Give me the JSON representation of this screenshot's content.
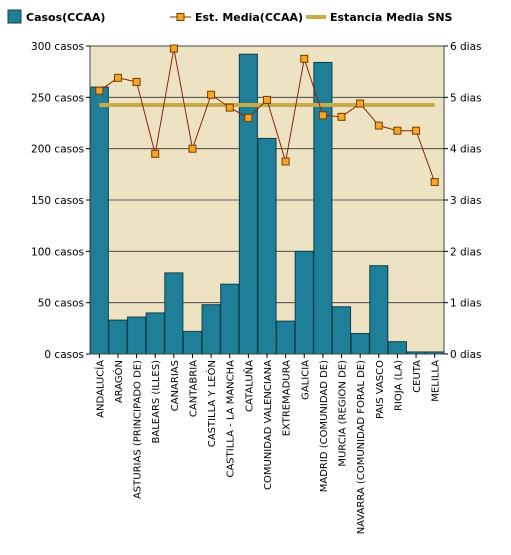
{
  "chart_data": {
    "type": "bar",
    "categories": [
      "ANDALUCÍA",
      "ARAGÓN",
      "ASTURIAS (PRINCIPADO DE)",
      "BALEARS (ILLES)",
      "CANARIAS",
      "CANTABRIA",
      "CASTILLA Y LEÓN",
      "CASTILLA - LA MANCHA",
      "CATALUÑA",
      "COMUNIDAD VALENCIANA",
      "EXTREMADURA",
      "GALICIA",
      "MADRID (COMUNIDAD DE)",
      "MURCIA (REGION DE)",
      "NAVARRA (COMUNIDAD FORAL DE)",
      "PAIS VASCO",
      "RIOJA (LA)",
      "CEUTA",
      "MELILLA"
    ],
    "series": [
      {
        "name": "Casos(CCAA)",
        "type": "bar",
        "axis": "left",
        "color": "#1f7f98",
        "values": [
          260,
          33,
          36,
          40,
          79,
          22,
          48,
          68,
          292,
          210,
          32,
          100,
          284,
          46,
          20,
          86,
          12,
          2,
          2
        ]
      },
      {
        "name": "Est. Media(CCAA)",
        "type": "line",
        "axis": "right",
        "color": "#8b2500",
        "marker_color": "#f5a623",
        "values": [
          5.13,
          5.38,
          5.3,
          3.9,
          5.95,
          4.0,
          5.05,
          4.8,
          4.6,
          4.95,
          3.75,
          5.75,
          4.65,
          4.62,
          4.88,
          4.45,
          4.35,
          4.35,
          3.35
        ]
      },
      {
        "name": "Estancia Media SNS",
        "type": "line",
        "axis": "right",
        "color": "#c8aa4a",
        "values": [
          4.85,
          4.85,
          4.85,
          4.85,
          4.85,
          4.85,
          4.85,
          4.85,
          4.85,
          4.85,
          4.85,
          4.85,
          4.85,
          4.85,
          4.85,
          4.85,
          4.85,
          4.85,
          4.85
        ]
      }
    ],
    "y_left": {
      "ticks": [
        0,
        50,
        100,
        150,
        200,
        250,
        300
      ],
      "unit": "casos",
      "ylim": [
        0,
        300
      ]
    },
    "y_right": {
      "ticks": [
        0,
        1,
        2,
        3,
        4,
        5,
        6
      ],
      "unit": "dias",
      "ylim": [
        0,
        6
      ]
    },
    "grid": true,
    "legend_position": "top",
    "plot_background": "#ede3c2"
  }
}
